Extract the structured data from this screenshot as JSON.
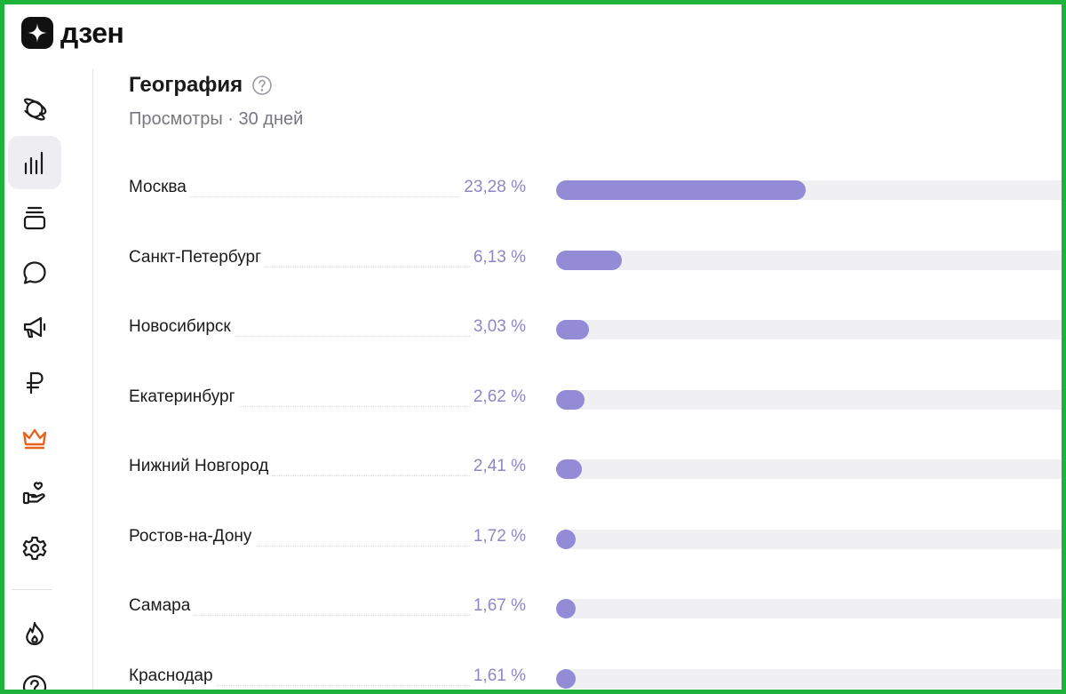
{
  "app": {
    "logo_text": "дзен",
    "logo_icon": "zen-star-icon"
  },
  "sidebar": {
    "items": [
      {
        "name": "planet-icon",
        "active": false
      },
      {
        "name": "bar-chart-icon",
        "active": true
      },
      {
        "name": "layers-icon",
        "active": false
      },
      {
        "name": "chat-bubble-icon",
        "active": false
      },
      {
        "name": "megaphone-icon",
        "active": false
      },
      {
        "name": "ruble-icon",
        "active": false
      },
      {
        "name": "crown-icon",
        "active": false,
        "color": "#e8621f"
      },
      {
        "name": "hand-heart-icon",
        "active": false
      },
      {
        "name": "gear-icon",
        "active": false
      },
      {
        "name": "flame-icon",
        "active": false
      },
      {
        "name": "help-circle-icon",
        "active": false
      }
    ]
  },
  "main": {
    "title": "География",
    "help_icon": "question-circle-icon",
    "subtitle": "Просмотры · 30 дней",
    "accent_color": "#938bd6",
    "rows": [
      {
        "city": "Москва",
        "percent_label": "23,28 %",
        "value": 23.28
      },
      {
        "city": "Санкт-Петербург",
        "percent_label": "6,13 %",
        "value": 6.13
      },
      {
        "city": "Новосибирск",
        "percent_label": "3,03 %",
        "value": 3.03
      },
      {
        "city": "Екатеринбург",
        "percent_label": "2,62 %",
        "value": 2.62
      },
      {
        "city": "Нижний Новгород",
        "percent_label": "2,41 %",
        "value": 2.41
      },
      {
        "city": "Ростов-на-Дону",
        "percent_label": "1,72 %",
        "value": 1.72
      },
      {
        "city": "Самара",
        "percent_label": "1,67 %",
        "value": 1.67
      },
      {
        "city": "Краснодар",
        "percent_label": "1,61 %",
        "value": 1.61
      }
    ]
  }
}
